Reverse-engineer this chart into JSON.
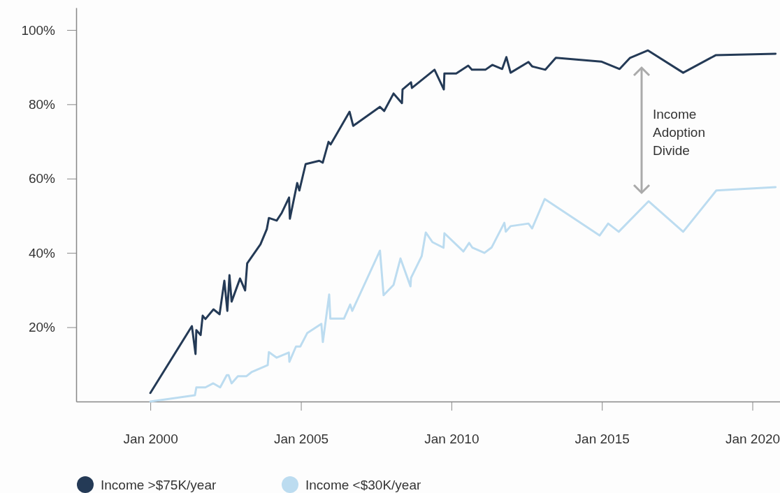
{
  "chart_data": {
    "type": "line",
    "xlim": [
      "1997-07-15",
      "2020-12-01"
    ],
    "xticks": [
      {
        "value": "2000-01-01",
        "label": "Jan 2000"
      },
      {
        "value": "2005-01-01",
        "label": "Jan 2005"
      },
      {
        "value": "2010-01-01",
        "label": "Jan 2010"
      },
      {
        "value": "2015-01-01",
        "label": "Jan 2015"
      },
      {
        "value": "2020-01-01",
        "label": "Jan 2020"
      }
    ],
    "ylim": [
      0,
      106
    ],
    "yticks": [
      {
        "value": 20,
        "label": "20%"
      },
      {
        "value": 40,
        "label": "40%"
      },
      {
        "value": 60,
        "label": "60%"
      },
      {
        "value": 80,
        "label": "80%"
      },
      {
        "value": 100,
        "label": "100%"
      }
    ],
    "legend": "bottom",
    "annotations": [
      "Income Adoption Divide"
    ],
    "series": [
      {
        "name": "Income >$75K/year",
        "color": "#243a56",
        "x": [
          "2000-01-01",
          "2001-05-19",
          "2001-07-02",
          "2001-07-12",
          "2001-09-02",
          "2001-09-27",
          "2001-10-30",
          "2002-02-05",
          "2002-04-20",
          "2002-06-17",
          "2002-07-23",
          "2002-08-18",
          "2002-09-13",
          "2002-12-24",
          "2003-02-24",
          "2003-03-21",
          "2003-08-29",
          "2003-11-14",
          "2003-12-09",
          "2004-03-13",
          "2004-05-14",
          "2004-08-10",
          "2004-08-20",
          "2004-11-17",
          "2004-12-13",
          "2005-02-27",
          "2005-08-11",
          "2005-09-23",
          "2005-12-02",
          "2005-12-28",
          "2006-08-14",
          "2006-09-27",
          "2007-08-18",
          "2007-10-08",
          "2008-01-30",
          "2008-05-11",
          "2008-05-18",
          "2008-08-29",
          "2008-09-09",
          "2009-06-10",
          "2009-10-01",
          "2009-10-08",
          "2010-02-28",
          "2010-07-24",
          "2010-09-06",
          "2011-02-17",
          "2011-05-12",
          "2011-09-09",
          "2011-10-30",
          "2011-12-20",
          "2012-07-24",
          "2012-09-06",
          "2013-02-14",
          "2013-06-21",
          "2014-12-24",
          "2015-08-04",
          "2015-12-09",
          "2016-07-13",
          "2017-09-13",
          "2018-10-12",
          "2020-10-08"
        ],
        "values": [
          2.3,
          20.3,
          12.8,
          19.2,
          17.9,
          23.1,
          22.2,
          24.8,
          23.5,
          32.5,
          24.4,
          34,
          26.9,
          33.1,
          29.9,
          37.2,
          42.3,
          46.4,
          49.4,
          48.7,
          50.8,
          54.9,
          49.2,
          58.8,
          56.8,
          63.9,
          64.8,
          64.3,
          69.9,
          69.2,
          78.0,
          74.2,
          79.3,
          78.2,
          82.9,
          80.3,
          84.0,
          85.9,
          84.4,
          89.3,
          84.0,
          88.3,
          88.3,
          90.4,
          89.3,
          89.3,
          90.6,
          89.5,
          92.7,
          88.5,
          91.4,
          90.2,
          89.3,
          92.5,
          91.5,
          89.5,
          92.5,
          94.5,
          88.5,
          93.2,
          93.6
        ]
      },
      {
        "name": "Income <$30K/year",
        "color": "#bcdcf0",
        "x": [
          "2000-01-01",
          "2001-06-25",
          "2001-07-12",
          "2001-10-30",
          "2002-02-02",
          "2002-04-27",
          "2002-07-16",
          "2002-08-07",
          "2002-09-13",
          "2002-11-28",
          "2003-03-10",
          "2003-05-12",
          "2003-11-25",
          "2003-12-09",
          "2004-03-13",
          "2004-08-07",
          "2004-08-14",
          "2004-11-02",
          "2004-12-24",
          "2005-03-18",
          "2005-09-06",
          "2005-09-24",
          "2005-12-10",
          "2005-12-24",
          "2006-06-07",
          "2006-08-22",
          "2006-09-16",
          "2007-08-18",
          "2007-10-01",
          "2008-01-30",
          "2008-04-23",
          "2008-08-22",
          "2008-08-29",
          "2009-01-05",
          "2009-02-24",
          "2009-05-16",
          "2009-09-27",
          "2009-10-08",
          "2010-05-27",
          "2010-08-04",
          "2010-09-13",
          "2011-02-06",
          "2011-05-05",
          "2011-10-05",
          "2011-10-23",
          "2011-12-20",
          "2012-07-24",
          "2012-09-06",
          "2013-02-06",
          "2014-12-05",
          "2015-03-18",
          "2015-07-24",
          "2016-07-20",
          "2017-09-13",
          "2018-10-20",
          "2020-10-08"
        ],
        "values": [
          0,
          1.7,
          3.8,
          3.8,
          4.9,
          3.8,
          7.1,
          7.1,
          4.9,
          6.8,
          6.8,
          7.9,
          9.8,
          13.3,
          11.8,
          13.2,
          10.7,
          14.8,
          14.8,
          18.4,
          20.9,
          16.0,
          28.8,
          22.3,
          22.3,
          26.1,
          24.4,
          40.6,
          28.6,
          31.4,
          38.5,
          31.0,
          33.3,
          39.1,
          45.5,
          42.9,
          41.4,
          45.3,
          40.4,
          42.7,
          41.4,
          40.0,
          41.5,
          48.1,
          45.7,
          47.2,
          47.9,
          46.6,
          54.5,
          44.7,
          47.9,
          45.7,
          53.9,
          45.7,
          56.8,
          57.7
        ]
      }
    ]
  }
}
